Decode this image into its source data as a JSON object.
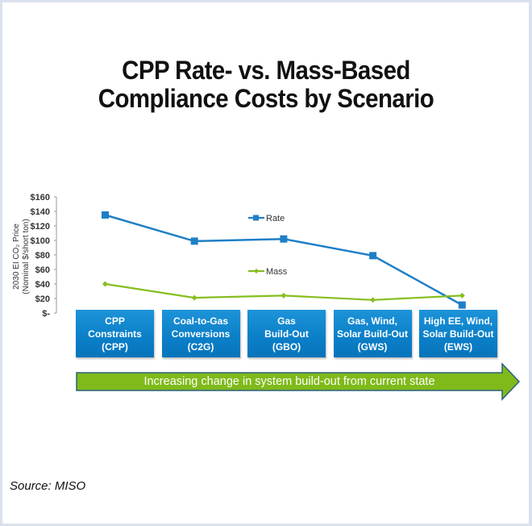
{
  "title_lines": [
    "CPP Rate- vs. Mass-Based",
    "Compliance Costs by Scenario"
  ],
  "source": "Source: MISO",
  "arrow_text": "Increasing change in system build-out from current state",
  "colors": {
    "rate": "#1f7fc6",
    "mass": "#86be1f",
    "scenario_box": "#0a7fc8",
    "arrow_fill": "#7fba1a",
    "arrow_border": "#2b6180",
    "frame": "#d9e1ec"
  },
  "scenarios": [
    {
      "key": "CPP",
      "lines": [
        "CPP",
        "Constraints",
        "(CPP)"
      ]
    },
    {
      "key": "C2G",
      "lines": [
        "Coal-to-Gas",
        "Conversions",
        "(C2G)"
      ]
    },
    {
      "key": "GBO",
      "lines": [
        "Gas",
        "Build-Out",
        "(GBO)"
      ]
    },
    {
      "key": "GWS",
      "lines": [
        "Gas, Wind,",
        "Solar Build-Out",
        "(GWS)"
      ]
    },
    {
      "key": "EWS",
      "lines": [
        "High EE, Wind,",
        "Solar Build-Out",
        "(EWS)"
      ]
    }
  ],
  "chart_data": {
    "type": "line",
    "title": "CPP Rate- vs. Mass-Based Compliance Costs by Scenario",
    "xlabel": "",
    "ylabel_lines": [
      "2030 EI CO₂ Price",
      "(Nominal $/short ton)"
    ],
    "categories": [
      "CPP",
      "C2G",
      "GBO",
      "GWS",
      "EWS"
    ],
    "ylim": [
      0,
      160
    ],
    "yticks": [
      0,
      20,
      40,
      60,
      80,
      100,
      120,
      140,
      160
    ],
    "ytick_labels": [
      "$-",
      "$20",
      "$40",
      "$60",
      "$80",
      "$100",
      "$120",
      "$140",
      "$160"
    ],
    "grid": false,
    "legend_placement": "inline-center",
    "series": [
      {
        "name": "Rate",
        "marker": "square",
        "values": [
          135,
          99,
          102,
          79,
          11
        ]
      },
      {
        "name": "Mass",
        "marker": "diamond",
        "values": [
          40,
          21,
          24,
          18,
          24
        ]
      }
    ]
  }
}
